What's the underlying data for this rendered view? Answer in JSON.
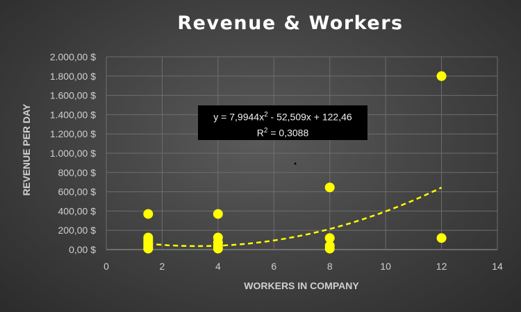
{
  "chart_data": {
    "type": "scatter",
    "title": "Revenue & Workers",
    "xlabel": "WORKERS IN COMPANY",
    "ylabel": "REVENUE PER DAY",
    "xlim": [
      0,
      14
    ],
    "ylim": [
      0,
      2000
    ],
    "x_ticks": [
      "0",
      "2",
      "4",
      "6",
      "8",
      "10",
      "12",
      "14"
    ],
    "y_ticks": [
      "0,00 $",
      "200,00 $",
      "400,00 $",
      "600,00 $",
      "800,00 $",
      "1.000,00 $",
      "1.200,00 $",
      "1.400,00 $",
      "1.600,00 $",
      "1.800,00 $",
      "2.000,00 $"
    ],
    "grid": true,
    "marker_color": "#ffff00",
    "points": [
      {
        "x": 1.5,
        "y": 370
      },
      {
        "x": 1.5,
        "y": 125
      },
      {
        "x": 1.5,
        "y": 100
      },
      {
        "x": 1.5,
        "y": 75
      },
      {
        "x": 1.5,
        "y": 50
      },
      {
        "x": 1.5,
        "y": 25
      },
      {
        "x": 1.5,
        "y": 10
      },
      {
        "x": 4,
        "y": 370
      },
      {
        "x": 4,
        "y": 125
      },
      {
        "x": 4,
        "y": 75
      },
      {
        "x": 4,
        "y": 40
      },
      {
        "x": 4,
        "y": 10
      },
      {
        "x": 8,
        "y": 645
      },
      {
        "x": 8,
        "y": 120
      },
      {
        "x": 8,
        "y": 40
      },
      {
        "x": 8,
        "y": 10
      },
      {
        "x": 12,
        "y": 1800
      },
      {
        "x": 12,
        "y": 120
      }
    ],
    "trendline": {
      "type": "polynomial",
      "order": 2,
      "coefficients": [
        7.9944,
        -52.509,
        122.46
      ],
      "x_range": [
        1.5,
        12
      ],
      "style": "dashed",
      "color": "#ffff00",
      "equation_label": {
        "prefix": "y = 7,9944x",
        "exp": "2",
        "suffix": " - 52,509x + 122,46",
        "r2_prefix": "R",
        "r2_exp": "2",
        "r2_suffix": " = 0,3088"
      }
    }
  }
}
